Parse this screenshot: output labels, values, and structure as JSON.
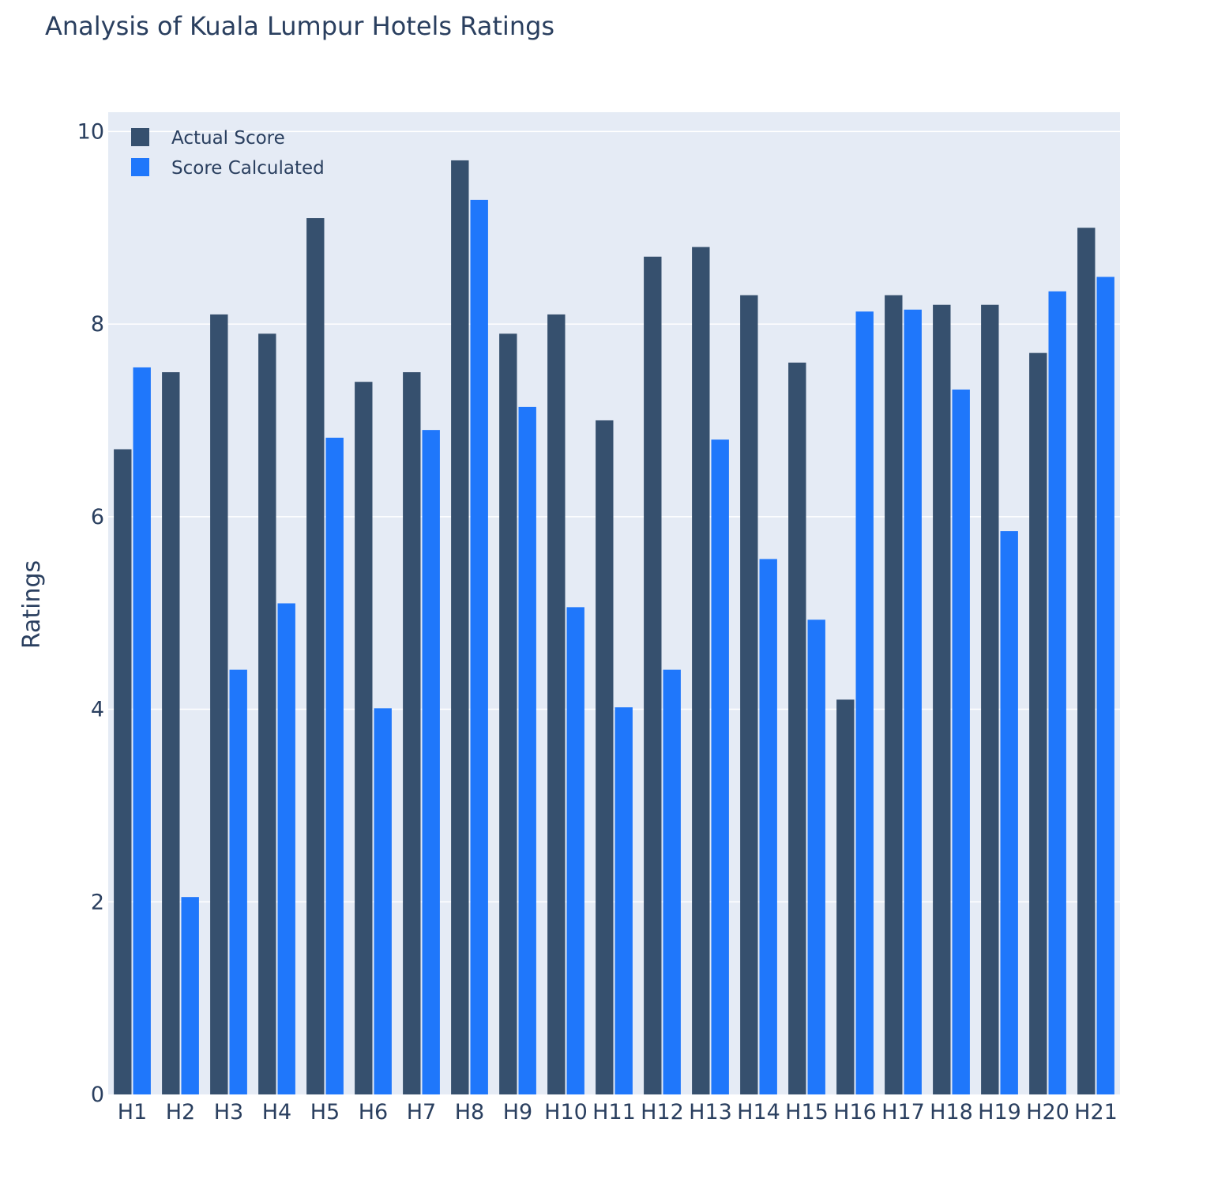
{
  "chart_data": {
    "type": "bar",
    "title": "Analysis of Kuala Lumpur Hotels Ratings",
    "xlabel": "",
    "ylabel": "Ratings",
    "ylim": [
      0,
      10.2
    ],
    "yticks": [
      0,
      2,
      4,
      6,
      8,
      10
    ],
    "grid": true,
    "legend_position": "top-left",
    "barmode": "group",
    "categories": [
      "H1",
      "H2",
      "H3",
      "H4",
      "H5",
      "H6",
      "H7",
      "H8",
      "H9",
      "H10",
      "H11",
      "H12",
      "H13",
      "H14",
      "H15",
      "H16",
      "H17",
      "H18",
      "H19",
      "H20",
      "H21"
    ],
    "series": [
      {
        "name": "Actual Score",
        "color": "#36506e",
        "values": [
          6.7,
          7.5,
          8.1,
          7.9,
          9.1,
          7.4,
          7.5,
          9.7,
          7.9,
          8.1,
          7.0,
          8.7,
          8.8,
          8.3,
          7.6,
          4.1,
          8.3,
          8.2,
          8.2,
          7.7,
          9.0
        ]
      },
      {
        "name": "Score Calculated",
        "color": "#1f77fb",
        "values": [
          7.55,
          2.05,
          4.41,
          5.1,
          6.82,
          4.01,
          6.9,
          9.29,
          7.14,
          5.06,
          4.02,
          4.41,
          6.8,
          5.56,
          4.93,
          8.13,
          8.15,
          7.32,
          5.85,
          8.34,
          8.49
        ]
      }
    ]
  },
  "style": {
    "plot_background": "#e5ebf5",
    "grid_color": "#ffffff",
    "text_color": "#2a3f5f"
  }
}
